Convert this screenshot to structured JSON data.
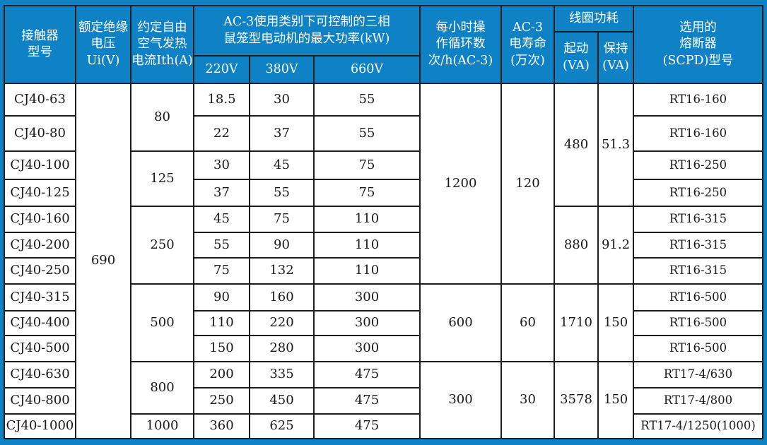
{
  "header": {
    "model": "接触器\n型号",
    "rated_insulation_voltage": "额定绝缘\n电压Ui(V)",
    "thermal_current": "约定自由\n空气发热\n电流Ith(A)",
    "ac3_max_power": "AC-3使用类别下可控制的三相\n鼠笼型电动机的最大功率(kW)",
    "power_voltages": [
      "220V",
      "380V",
      "660V"
    ],
    "cycles_per_hour": "每小时操\n作循环数\n次/h(AC-3)",
    "electrical_life": "AC-3\n电寿命\n(万次)",
    "coil_power": "线圈功耗",
    "coil_start": "起动\n(VA)",
    "coil_hold": "保持\n(VA)",
    "fuse": "选用的\n熔断器\n(SCPD)型号"
  },
  "rows": [
    {
      "model": "CJ40-63",
      "p220": "18.5",
      "p380": "30",
      "p660": "55",
      "fuse": "RT16-160"
    },
    {
      "model": "CJ40-80",
      "p220": "22",
      "p380": "37",
      "p660": "55",
      "fuse": "RT16-160"
    },
    {
      "model": "CJ40-100",
      "p220": "30",
      "p380": "45",
      "p660": "75",
      "fuse": "RT16-250"
    },
    {
      "model": "CJ40-125",
      "p220": "37",
      "p380": "55",
      "p660": "75",
      "fuse": "RT16-250"
    },
    {
      "model": "CJ40-160",
      "p220": "45",
      "p380": "75",
      "p660": "110",
      "fuse": "RT16-315"
    },
    {
      "model": "CJ40-200",
      "p220": "55",
      "p380": "90",
      "p660": "110",
      "fuse": "RT16-315"
    },
    {
      "model": "CJ40-250",
      "p220": "75",
      "p380": "132",
      "p660": "110",
      "fuse": "RT16-315"
    },
    {
      "model": "CJ40-315",
      "p220": "90",
      "p380": "160",
      "p660": "300",
      "fuse": "RT16-500"
    },
    {
      "model": "CJ40-400",
      "p220": "110",
      "p380": "220",
      "p660": "300",
      "fuse": "RT16-500"
    },
    {
      "model": "CJ40-500",
      "p220": "150",
      "p380": "280",
      "p660": "300",
      "fuse": "RT16-500"
    },
    {
      "model": "CJ40-630",
      "p220": "200",
      "p380": "335",
      "p660": "475",
      "fuse": "RT17-4/630"
    },
    {
      "model": "CJ40-800",
      "p220": "250",
      "p380": "450",
      "p660": "475",
      "fuse": "RT17-4/800"
    },
    {
      "model": "CJ40-1000",
      "p220": "360",
      "p380": "625",
      "p660": "475",
      "fuse": "RT17-4/1250(1000)"
    }
  ],
  "merged": {
    "rated_voltage": [
      {
        "value": "690",
        "start": 1,
        "span": 13
      }
    ],
    "thermal_current": [
      {
        "value": "80",
        "start": 1,
        "span": 2
      },
      {
        "value": "125",
        "start": 3,
        "span": 2
      },
      {
        "value": "250",
        "start": 5,
        "span": 3
      },
      {
        "value": "500",
        "start": 8,
        "span": 3
      },
      {
        "value": "800",
        "start": 11,
        "span": 2
      },
      {
        "value": "1000",
        "start": 13,
        "span": 1
      }
    ],
    "cycles": [
      {
        "value": "1200",
        "start": 1,
        "span": 7
      },
      {
        "value": "600",
        "start": 8,
        "span": 3
      },
      {
        "value": "300",
        "start": 11,
        "span": 3
      }
    ],
    "life": [
      {
        "value": "120",
        "start": 1,
        "span": 7
      },
      {
        "value": "60",
        "start": 8,
        "span": 3
      },
      {
        "value": "30",
        "start": 11,
        "span": 3
      }
    ],
    "coil_start": [
      {
        "value": "480",
        "start": 1,
        "span": 4
      },
      {
        "value": "880",
        "start": 5,
        "span": 3
      },
      {
        "value": "1710",
        "start": 8,
        "span": 3
      },
      {
        "value": "3578",
        "start": 11,
        "span": 3
      }
    ],
    "coil_hold": [
      {
        "value": "51.3",
        "start": 1,
        "span": 4
      },
      {
        "value": "91.2",
        "start": 5,
        "span": 3
      },
      {
        "value": "150",
        "start": 8,
        "span": 3
      },
      {
        "value": "150",
        "start": 11,
        "span": 3
      }
    ]
  },
  "colors": {
    "header_bg": "#0e82c5",
    "frame": "#0e82c5",
    "grid_line": "#1c1c1c",
    "body_bg": "#ffffff",
    "header_text": "#ffffff",
    "body_text": "#1a1a1a"
  }
}
